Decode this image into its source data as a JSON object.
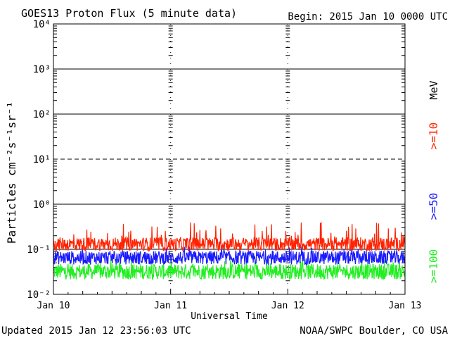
{
  "header": {
    "title": "GOES13 Proton Flux (5 minute data)",
    "begin": "Begin: 2015 Jan 10 0000 UTC"
  },
  "footer": {
    "updated": "Updated 2015 Jan 12 23:56:03 UTC",
    "credit": "NOAA/SWPC Boulder, CO USA"
  },
  "chart_data": {
    "type": "line",
    "title": "GOES13 Proton Flux (5 minute data)",
    "xlabel": "Universal Time",
    "ylabel": "Particles cm⁻²s⁻¹sr⁻¹",
    "x_ticks": [
      "Jan 10",
      "Jan 11",
      "Jan 12",
      "Jan 13"
    ],
    "y_scale": "log",
    "ylim": [
      0.01,
      10000
    ],
    "y_ticks": [
      "10⁻²",
      "10⁻¹",
      "10⁰",
      "10¹",
      "10²",
      "10³",
      "10⁴"
    ],
    "threshold_line": 0.1,
    "unit_label": "MeV",
    "series": [
      {
        "name": ">=10",
        "color": "#ff2200",
        "level": 0.13,
        "spread": 0.35,
        "spike_max": 0.4
      },
      {
        "name": ">=50",
        "color": "#1a1aff",
        "level": 0.065,
        "spread": 0.35,
        "spike_max": 0.12
      },
      {
        "name": ">=100",
        "color": "#22ee22",
        "level": 0.032,
        "spread": 0.4,
        "spike_max": 0.06
      }
    ]
  }
}
